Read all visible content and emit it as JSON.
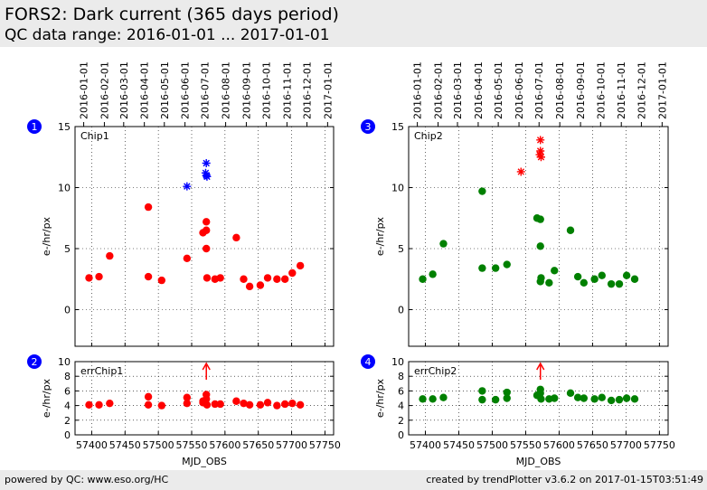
{
  "header": {
    "title": "FORS2: Dark current (365 days period)",
    "subtitle": "QC data range: 2016-01-01 ... 2017-01-01"
  },
  "footer": {
    "left": "powered by QC: www.eso.org/HC",
    "right": "created by trendPlotter v3.6.2 on 2017-01-15T03:51:49"
  },
  "colors": {
    "header_bg": "#ebebeb",
    "marker_red": "#ff0000",
    "marker_green": "#008000",
    "marker_blue": "#0000ff",
    "badge": "#0000ff"
  },
  "chart_data": [
    {
      "panel": "1",
      "type": "scatter",
      "label": "Chip1",
      "ylabel": "e-/hr/px",
      "xlabel": "",
      "xlim": [
        57375,
        57763
      ],
      "ylim": [
        -3,
        15
      ],
      "yticks": [
        0,
        5,
        10,
        15
      ],
      "xticks": [
        57400,
        57450,
        57500,
        57550,
        57600,
        57650,
        57700,
        57750
      ],
      "show_xticklabels": false,
      "top_date_ticks": [
        {
          "mjd": 57388,
          "label": "2016-01-01"
        },
        {
          "mjd": 57419,
          "label": "2016-02-01"
        },
        {
          "mjd": 57448,
          "label": "2016-03-01"
        },
        {
          "mjd": 57479,
          "label": "2016-04-01"
        },
        {
          "mjd": 57509,
          "label": "2016-05-01"
        },
        {
          "mjd": 57540,
          "label": "2016-06-01"
        },
        {
          "mjd": 57570,
          "label": "2016-07-01"
        },
        {
          "mjd": 57601,
          "label": "2016-08-01"
        },
        {
          "mjd": 57632,
          "label": "2016-09-01"
        },
        {
          "mjd": 57662,
          "label": "2016-10-01"
        },
        {
          "mjd": 57693,
          "label": "2016-11-01"
        },
        {
          "mjd": 57723,
          "label": "2016-12-01"
        },
        {
          "mjd": 57754,
          "label": "2017-01-01"
        }
      ],
      "series": [
        {
          "marker": "circle",
          "color": "#ff0000",
          "points": [
            [
              57396,
              2.6
            ],
            [
              57411,
              2.7
            ],
            [
              57427,
              4.4
            ],
            [
              57485,
              8.4
            ],
            [
              57485,
              2.7
            ],
            [
              57505,
              2.4
            ],
            [
              57543,
              4.2
            ],
            [
              57567,
              6.3
            ],
            [
              57572,
              6.5
            ],
            [
              57572,
              7.2
            ],
            [
              57572,
              5.0
            ],
            [
              57573,
              2.6
            ],
            [
              57585,
              2.5
            ],
            [
              57593,
              2.6
            ],
            [
              57617,
              5.9
            ],
            [
              57628,
              2.5
            ],
            [
              57637,
              1.9
            ],
            [
              57653,
              2.0
            ],
            [
              57664,
              2.6
            ],
            [
              57678,
              2.5
            ],
            [
              57690,
              2.5
            ],
            [
              57701,
              3.0
            ],
            [
              57713,
              3.6
            ]
          ]
        },
        {
          "marker": "star",
          "color": "#0000ff",
          "points": [
            [
              57543,
              10.1
            ],
            [
              57572,
              12.0
            ],
            [
              57572,
              11.0
            ],
            [
              57571,
              11.2
            ],
            [
              57573,
              10.9
            ]
          ]
        }
      ]
    },
    {
      "panel": "3",
      "type": "scatter",
      "label": "Chip2",
      "ylabel": "e-/hr/px",
      "xlabel": "",
      "xlim": [
        57375,
        57763
      ],
      "ylim": [
        -3,
        15
      ],
      "yticks": [
        0,
        5,
        10,
        15
      ],
      "xticks": [
        57400,
        57450,
        57500,
        57550,
        57600,
        57650,
        57700,
        57750
      ],
      "show_xticklabels": false,
      "top_date_ticks": [
        {
          "mjd": 57388,
          "label": "2016-01-01"
        },
        {
          "mjd": 57419,
          "label": "2016-02-01"
        },
        {
          "mjd": 57448,
          "label": "2016-03-01"
        },
        {
          "mjd": 57479,
          "label": "2016-04-01"
        },
        {
          "mjd": 57509,
          "label": "2016-05-01"
        },
        {
          "mjd": 57540,
          "label": "2016-06-01"
        },
        {
          "mjd": 57570,
          "label": "2016-07-01"
        },
        {
          "mjd": 57601,
          "label": "2016-08-01"
        },
        {
          "mjd": 57632,
          "label": "2016-09-01"
        },
        {
          "mjd": 57662,
          "label": "2016-10-01"
        },
        {
          "mjd": 57693,
          "label": "2016-11-01"
        },
        {
          "mjd": 57723,
          "label": "2016-12-01"
        },
        {
          "mjd": 57754,
          "label": "2017-01-01"
        }
      ],
      "series": [
        {
          "marker": "circle",
          "color": "#008000",
          "points": [
            [
              57396,
              2.5
            ],
            [
              57411,
              2.9
            ],
            [
              57427,
              5.4
            ],
            [
              57485,
              9.7
            ],
            [
              57485,
              3.4
            ],
            [
              57505,
              3.4
            ],
            [
              57522,
              3.7
            ],
            [
              57567,
              7.5
            ],
            [
              57572,
              7.4
            ],
            [
              57572,
              5.2
            ],
            [
              57573,
              2.6
            ],
            [
              57572,
              2.3
            ],
            [
              57585,
              2.2
            ],
            [
              57593,
              3.2
            ],
            [
              57617,
              6.5
            ],
            [
              57628,
              2.7
            ],
            [
              57637,
              2.2
            ],
            [
              57653,
              2.5
            ],
            [
              57664,
              2.8
            ],
            [
              57678,
              2.1
            ],
            [
              57690,
              2.1
            ],
            [
              57701,
              2.8
            ],
            [
              57713,
              2.5
            ]
          ]
        },
        {
          "marker": "star",
          "color": "#ff0000",
          "points": [
            [
              57543,
              11.3
            ],
            [
              57572,
              13.9
            ],
            [
              57572,
              13.0
            ],
            [
              57571,
              12.7
            ],
            [
              57573,
              12.5
            ]
          ]
        }
      ]
    },
    {
      "panel": "2",
      "type": "scatter",
      "label": "errChip1",
      "ylabel": "e-/hr/px",
      "xlabel": "MJD_OBS",
      "xlim": [
        57375,
        57763
      ],
      "ylim": [
        0,
        10
      ],
      "yticks": [
        0,
        2,
        4,
        6,
        8,
        10
      ],
      "xticks": [
        57400,
        57450,
        57500,
        57550,
        57600,
        57650,
        57700,
        57750
      ],
      "show_xticklabels": true,
      "series": [
        {
          "marker": "circle",
          "color": "#ff0000",
          "points": [
            [
              57396,
              4.1
            ],
            [
              57411,
              4.1
            ],
            [
              57427,
              4.3
            ],
            [
              57485,
              4.1
            ],
            [
              57485,
              5.2
            ],
            [
              57505,
              4.0
            ],
            [
              57543,
              5.1
            ],
            [
              57543,
              4.3
            ],
            [
              57567,
              4.6
            ],
            [
              57572,
              5.5
            ],
            [
              57572,
              4.9
            ],
            [
              57573,
              4.1
            ],
            [
              57567,
              4.4
            ],
            [
              57585,
              4.2
            ],
            [
              57593,
              4.2
            ],
            [
              57617,
              4.6
            ],
            [
              57628,
              4.3
            ],
            [
              57637,
              4.1
            ],
            [
              57653,
              4.1
            ],
            [
              57664,
              4.4
            ],
            [
              57678,
              4.0
            ],
            [
              57690,
              4.2
            ],
            [
              57701,
              4.3
            ],
            [
              57713,
              4.1
            ]
          ]
        }
      ],
      "arrows": [
        {
          "x": 57572,
          "color": "#ff0000"
        }
      ]
    },
    {
      "panel": "4",
      "type": "scatter",
      "label": "errChip2",
      "ylabel": "e-/hr/px",
      "xlabel": "MJD_OBS",
      "xlim": [
        57375,
        57763
      ],
      "ylim": [
        0,
        10
      ],
      "yticks": [
        0,
        2,
        4,
        6,
        8,
        10
      ],
      "xticks": [
        57400,
        57450,
        57500,
        57550,
        57600,
        57650,
        57700,
        57750
      ],
      "show_xticklabels": true,
      "series": [
        {
          "marker": "circle",
          "color": "#008000",
          "points": [
            [
              57396,
              4.9
            ],
            [
              57411,
              4.9
            ],
            [
              57427,
              5.1
            ],
            [
              57485,
              4.8
            ],
            [
              57485,
              6.0
            ],
            [
              57505,
              4.8
            ],
            [
              57522,
              5.0
            ],
            [
              57522,
              5.8
            ],
            [
              57567,
              5.4
            ],
            [
              57572,
              6.2
            ],
            [
              57572,
              5.7
            ],
            [
              57573,
              4.9
            ],
            [
              57585,
              4.9
            ],
            [
              57593,
              5.0
            ],
            [
              57617,
              5.7
            ],
            [
              57628,
              5.1
            ],
            [
              57637,
              5.0
            ],
            [
              57653,
              4.9
            ],
            [
              57664,
              5.1
            ],
            [
              57678,
              4.7
            ],
            [
              57690,
              4.8
            ],
            [
              57701,
              5.0
            ],
            [
              57713,
              4.9
            ]
          ]
        }
      ],
      "arrows": [
        {
          "x": 57572,
          "color": "#ff0000"
        }
      ]
    }
  ]
}
